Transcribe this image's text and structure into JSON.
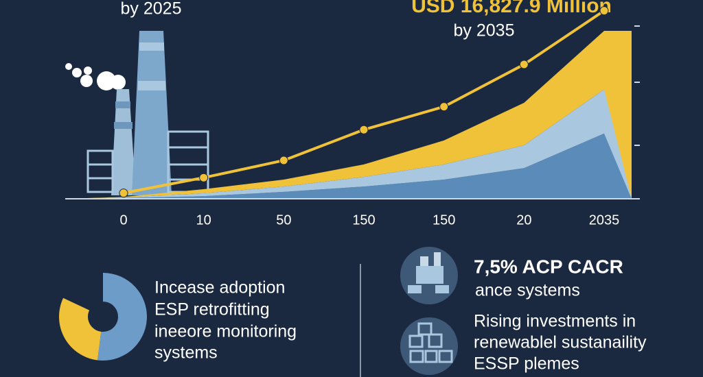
{
  "chart_data": [
    {
      "type": "line",
      "annotations": [
        "by 2025",
        "USD 16,827.9 Million",
        "by 2035"
      ],
      "categories": [
        "0",
        "10",
        "50",
        "150",
        "150",
        "20",
        "2035"
      ],
      "ylim": [
        0,
        100
      ],
      "areas": [
        {
          "color": "#5b8bb8",
          "values": [
            0.4,
            1.4,
            3.6,
            6.4,
            10,
            16,
            34
          ]
        },
        {
          "color": "#a9c8e0",
          "values": [
            0.3,
            1.5,
            2.8,
            5,
            7.9,
            11.9,
            23
          ]
        },
        {
          "color": "#f0c23a",
          "values": [
            0.3,
            2.1,
            3.6,
            6.5,
            12.5,
            22.1,
            30.5
          ]
        }
      ],
      "series": [
        {
          "color": "#f0c23a",
          "values": [
            3,
            11,
            20,
            36,
            48,
            70,
            98
          ]
        }
      ]
    },
    {
      "type": "pie",
      "values": [
        52,
        30
      ],
      "colors": [
        "#6d9cc8",
        "#f0c23a"
      ]
    }
  ],
  "left_text": [
    "Incease adoption",
    "ESP retrofitting",
    "ineeore monitoring",
    "systems"
  ],
  "right_items": [
    {
      "title": "7,5% ACP CACR",
      "lines": [
        "ance systems"
      ]
    },
    {
      "lines": [
        "Rising investments in",
        "renewablel sustanaility",
        "ESSP plemes"
      ]
    }
  ]
}
